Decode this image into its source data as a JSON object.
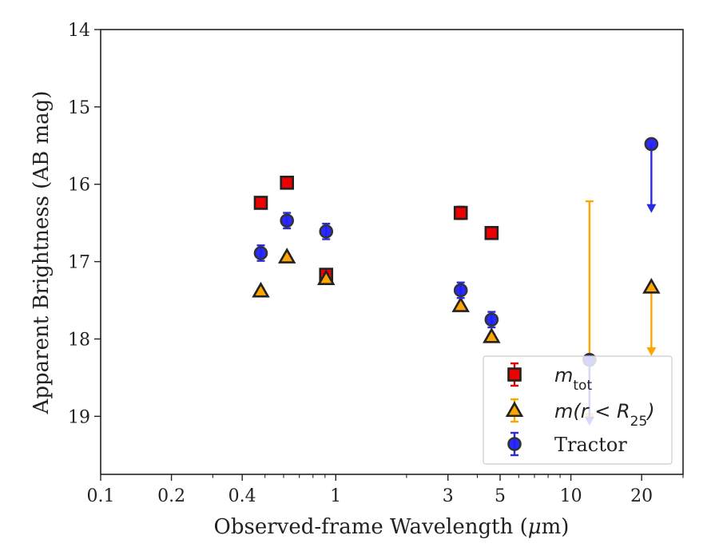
{
  "chart_data": {
    "type": "scatter",
    "xlabel_prefix": "Observed-frame Wavelength (",
    "xlabel_unit_mu": "μ",
    "xlabel_unit_rest": "m)",
    "ylabel": "Apparent Brightness (AB mag)",
    "x_scale": "log",
    "xlim": [
      0.1,
      30
    ],
    "ylim": [
      19.75,
      14
    ],
    "y_inverted": true,
    "x_ticks": [
      {
        "value": 0.1,
        "label": "0.1"
      },
      {
        "value": 0.2,
        "label": "0.2"
      },
      {
        "value": 0.4,
        "label": "0.4"
      },
      {
        "value": 1,
        "label": "1"
      },
      {
        "value": 3,
        "label": "3"
      },
      {
        "value": 5,
        "label": "5"
      },
      {
        "value": 10,
        "label": "10"
      },
      {
        "value": 20,
        "label": "20"
      }
    ],
    "x_minor_ticks": [
      0.3,
      0.5,
      0.6,
      0.7,
      0.8,
      0.9,
      2,
      4,
      6,
      7,
      8,
      9,
      30
    ],
    "y_ticks": [
      {
        "value": 14,
        "label": "14"
      },
      {
        "value": 15,
        "label": "15"
      },
      {
        "value": 16,
        "label": "16"
      },
      {
        "value": 17,
        "label": "17"
      },
      {
        "value": 18,
        "label": "18"
      },
      {
        "value": 19,
        "label": "19"
      }
    ],
    "legend": {
      "position": "lower-right",
      "entries": [
        {
          "series": "m_tot",
          "label_main": "m",
          "label_sub": "tot"
        },
        {
          "series": "m_r25",
          "label_main": "m(r < R",
          "label_sub": "25",
          "label_end": ")"
        },
        {
          "series": "tractor",
          "label_main": "Tractor"
        }
      ]
    },
    "series": [
      {
        "key": "m_tot",
        "marker": "square",
        "color": "#ee0000",
        "edge": "#222222",
        "errcolor": "#dd0000",
        "points": [
          {
            "x": 0.48,
            "y": 16.24,
            "err": 0.07
          },
          {
            "x": 0.62,
            "y": 15.98,
            "err": 0.07
          },
          {
            "x": 0.91,
            "y": 17.17,
            "err": 0.07
          },
          {
            "x": 3.4,
            "y": 16.37,
            "err": 0.08
          },
          {
            "x": 4.6,
            "y": 16.63,
            "err": 0.07
          }
        ]
      },
      {
        "key": "m_r25",
        "marker": "triangle",
        "color": "#ffa500",
        "edge": "#222222",
        "errcolor": "#ffa500",
        "points": [
          {
            "x": 0.48,
            "y": 17.38,
            "err": 0.03
          },
          {
            "x": 0.62,
            "y": 16.94,
            "err": 0.03
          },
          {
            "x": 0.91,
            "y": 17.22,
            "err": 0.03
          },
          {
            "x": 3.4,
            "y": 17.57,
            "err": 0.03
          },
          {
            "x": 4.6,
            "y": 17.97,
            "err": 0.03
          },
          {
            "x": 22,
            "y": 17.33,
            "err": 0.0,
            "upper_limit_to": 18.2
          }
        ],
        "bars": [
          {
            "x": 12,
            "top": 16.22,
            "bottom": 19.0
          }
        ]
      },
      {
        "key": "tractor",
        "marker": "circle",
        "color": "#1f1fff",
        "edge": "#333333",
        "errcolor": "#2a2ae0",
        "points": [
          {
            "x": 0.48,
            "y": 16.89,
            "err": 0.1
          },
          {
            "x": 0.62,
            "y": 16.47,
            "err": 0.1
          },
          {
            "x": 0.91,
            "y": 16.61,
            "err": 0.1
          },
          {
            "x": 3.4,
            "y": 17.37,
            "err": 0.1
          },
          {
            "x": 4.6,
            "y": 17.75,
            "err": 0.1
          },
          {
            "x": 12,
            "y": 18.27,
            "err": 0.0,
            "upper_limit_to": 19.1
          },
          {
            "x": 22,
            "y": 15.48,
            "err": 0.0,
            "upper_limit_to": 16.35
          }
        ]
      }
    ]
  }
}
